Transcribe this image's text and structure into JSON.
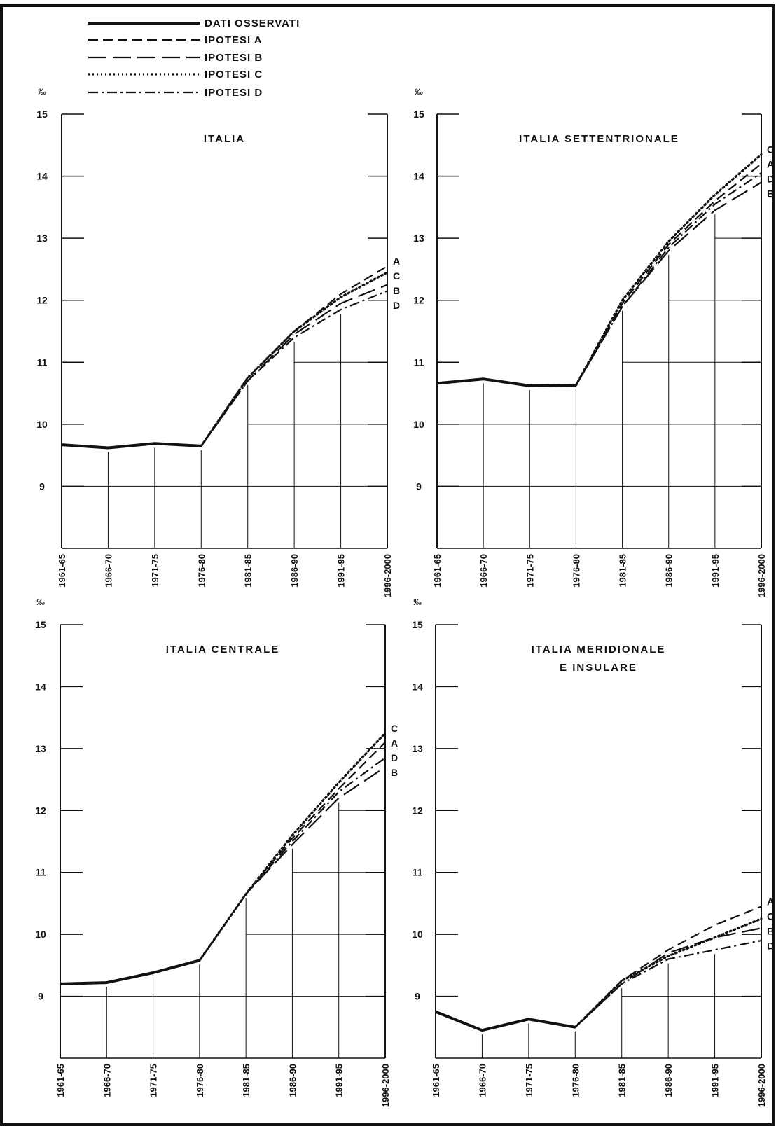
{
  "legend": {
    "items": [
      {
        "key": "observed",
        "label": "DATI OSSERVATI"
      },
      {
        "key": "A",
        "label": "IPOTESI A"
      },
      {
        "key": "B",
        "label": "IPOTESI B"
      },
      {
        "key": "C",
        "label": "IPOTESI C"
      },
      {
        "key": "D",
        "label": "IPOTESI D"
      }
    ]
  },
  "chart_data": [
    {
      "type": "line",
      "title": "ITALIA",
      "subtitle": "",
      "unit": "‰",
      "categories": [
        "1961-65",
        "1966-70",
        "1971-75",
        "1976-80",
        "1981-85",
        "1986-90",
        "1991-95",
        "1996-2000"
      ],
      "ylim": [
        8,
        15
      ],
      "yticks": [
        9,
        10,
        11,
        12,
        13,
        14,
        15
      ],
      "grid": true,
      "observed": {
        "name": "DATI OSSERVATI",
        "values": [
          9.67,
          9.62,
          9.69,
          9.65,
          null,
          null,
          null,
          null
        ]
      },
      "series": [
        {
          "name": "IPOTESI A",
          "values": [
            null,
            null,
            null,
            9.65,
            10.75,
            11.5,
            12.1,
            12.55
          ]
        },
        {
          "name": "IPOTESI B",
          "values": [
            null,
            null,
            null,
            9.65,
            10.7,
            11.45,
            11.95,
            12.25
          ]
        },
        {
          "name": "IPOTESI C",
          "values": [
            null,
            null,
            null,
            9.65,
            10.75,
            11.5,
            12.05,
            12.45
          ]
        },
        {
          "name": "IPOTESI D",
          "values": [
            null,
            null,
            null,
            9.65,
            10.7,
            11.4,
            11.85,
            12.15
          ]
        }
      ],
      "end_labels": [
        "A",
        "C",
        "B",
        "D"
      ]
    },
    {
      "type": "line",
      "title": "ITALIA SETTENTRIONALE",
      "subtitle": "",
      "unit": "‰",
      "categories": [
        "1961-65",
        "1966-70",
        "1971-75",
        "1976-80",
        "1981-85",
        "1986-90",
        "1991-95",
        "1996-2000"
      ],
      "ylim": [
        8,
        15
      ],
      "yticks": [
        9,
        10,
        11,
        12,
        13,
        14,
        15
      ],
      "grid": true,
      "observed": {
        "name": "DATI OSSERVATI",
        "values": [
          10.66,
          10.73,
          10.62,
          10.63,
          null,
          null,
          null,
          null
        ]
      },
      "series": [
        {
          "name": "IPOTESI A",
          "values": [
            null,
            null,
            null,
            10.63,
            11.95,
            12.9,
            13.6,
            14.2
          ]
        },
        {
          "name": "IPOTESI B",
          "values": [
            null,
            null,
            null,
            10.63,
            11.9,
            12.8,
            13.45,
            13.9
          ]
        },
        {
          "name": "IPOTESI C",
          "values": [
            null,
            null,
            null,
            10.63,
            12.0,
            12.95,
            13.7,
            14.35
          ]
        },
        {
          "name": "IPOTESI D",
          "values": [
            null,
            null,
            null,
            10.63,
            11.9,
            12.85,
            13.55,
            14.05
          ]
        }
      ],
      "end_labels": [
        "C",
        "A",
        "D",
        "B"
      ]
    },
    {
      "type": "line",
      "title": "ITALIA CENTRALE",
      "subtitle": "",
      "unit": "‰",
      "categories": [
        "1961-65",
        "1966-70",
        "1971-75",
        "1976-80",
        "1981-85",
        "1986-90",
        "1991-95",
        "1996-2000"
      ],
      "ylim": [
        8,
        15
      ],
      "yticks": [
        9,
        10,
        11,
        12,
        13,
        14,
        15
      ],
      "grid": true,
      "observed": {
        "name": "DATI OSSERVATI",
        "values": [
          9.2,
          9.22,
          9.38,
          9.58,
          null,
          null,
          null,
          null
        ]
      },
      "series": [
        {
          "name": "IPOTESI A",
          "values": [
            null,
            null,
            null,
            9.58,
            10.65,
            11.55,
            12.35,
            13.1
          ]
        },
        {
          "name": "IPOTESI B",
          "values": [
            null,
            null,
            null,
            9.58,
            10.65,
            11.45,
            12.2,
            12.7
          ]
        },
        {
          "name": "IPOTESI C",
          "values": [
            null,
            null,
            null,
            9.58,
            10.65,
            11.6,
            12.45,
            13.25
          ]
        },
        {
          "name": "IPOTESI D",
          "values": [
            null,
            null,
            null,
            9.58,
            10.65,
            11.5,
            12.3,
            12.85
          ]
        }
      ],
      "end_labels": [
        "C",
        "A",
        "D",
        "B"
      ]
    },
    {
      "type": "line",
      "title": "ITALIA MERIDIONALE",
      "subtitle": "E INSULARE",
      "unit": "‰",
      "categories": [
        "1961-65",
        "1966-70",
        "1971-75",
        "1976-80",
        "1981-85",
        "1986-90",
        "1991-95",
        "1996-2000"
      ],
      "ylim": [
        8,
        15
      ],
      "yticks": [
        9,
        10,
        11,
        12,
        13,
        14,
        15
      ],
      "grid": true,
      "observed": {
        "name": "DATI OSSERVATI",
        "values": [
          8.75,
          8.45,
          8.63,
          8.5,
          null,
          null,
          null,
          null
        ]
      },
      "series": [
        {
          "name": "IPOTESI A",
          "values": [
            null,
            null,
            null,
            8.5,
            9.25,
            9.75,
            10.15,
            10.45
          ]
        },
        {
          "name": "IPOTESI B",
          "values": [
            null,
            null,
            null,
            8.5,
            9.2,
            9.7,
            9.95,
            10.1
          ]
        },
        {
          "name": "IPOTESI C",
          "values": [
            null,
            null,
            null,
            8.5,
            9.25,
            9.65,
            9.95,
            10.25
          ]
        },
        {
          "name": "IPOTESI D",
          "values": [
            null,
            null,
            null,
            8.5,
            9.2,
            9.6,
            9.75,
            9.9
          ]
        }
      ],
      "end_labels": [
        "A",
        "C",
        "B",
        "D"
      ]
    }
  ]
}
